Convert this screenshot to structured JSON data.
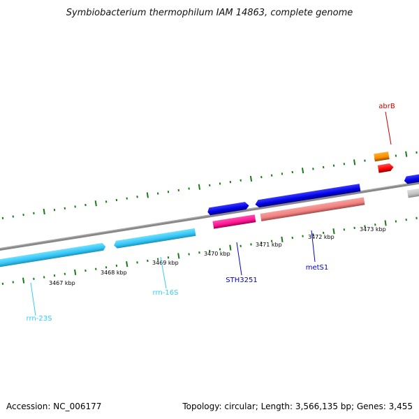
{
  "title": "Symbiobacterium thermophilum IAM 14863, complete genome",
  "footer": {
    "accession": "Accession: NC_006177",
    "topology": "Topology: circular; Length: 3,566,135 bp; Genes: 3,455"
  },
  "scale_labels": [
    "3467 kbp",
    "3468 kbp",
    "3469 kbp",
    "3470 kbp",
    "3471 kbp",
    "3472 kbp",
    "3473 kbp"
  ],
  "genes": [
    {
      "name": "rrn-23S",
      "color": "#33ccff"
    },
    {
      "name": "rrn-16S",
      "color": "#33ccff"
    },
    {
      "name": "STH3251",
      "color": "#0000cc"
    },
    {
      "name": "metS1",
      "color": "#0000cc"
    },
    {
      "name": "abrB",
      "color": "#cc0000"
    }
  ],
  "colors": {
    "backbone": "#777777",
    "tick": "#1a7a1a",
    "rrna": "#33ccff",
    "cds_forward": "#0000ee",
    "pink": "#ff1493",
    "salmon": "#f08080",
    "orange": "#ff8c00",
    "red": "#ff0000",
    "gray": "#bdbdbd"
  }
}
